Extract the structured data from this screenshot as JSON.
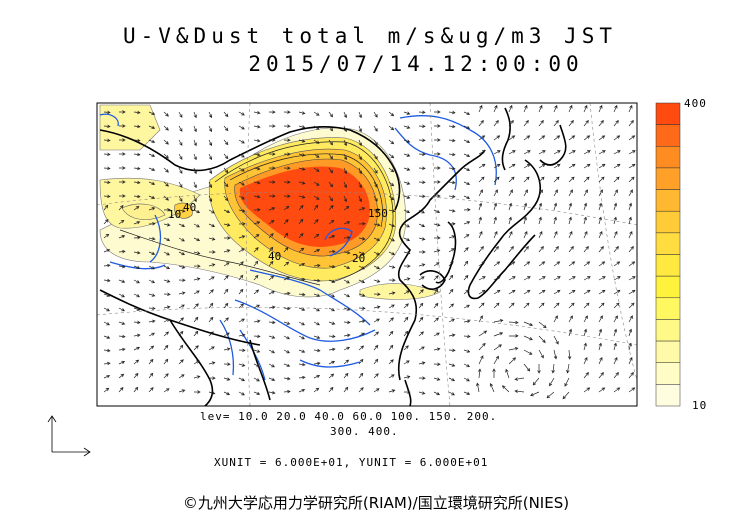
{
  "title_line1": "U-V&Dust total m/s&ug/m3 JST",
  "title_line2": "2015/07/14.12:00:00",
  "levels_line1": "lev= 10.0 20.0 40.0 60.0 100. 150. 200.",
  "levels_line2": "300. 400.",
  "unit_text": "XUNIT = 6.000E+01, YUNIT = 6.000E+01",
  "colorbar": {
    "max_label": "400",
    "min_label": "10",
    "colors": [
      "#ff4a10",
      "#ff6a18",
      "#ff8c20",
      "#ffa028",
      "#ffb830",
      "#ffcc38",
      "#ffdc40",
      "#ffe840",
      "#fff23c",
      "#fff860",
      "#fffa88",
      "#fffaa8",
      "#fffcc6",
      "#fffde0"
    ]
  },
  "contour_labels": [
    "40",
    "150",
    "20",
    "10",
    "40"
  ],
  "copyright": "©九州大学応用力学研究所(RIAM)/国立環境研究所(NIES)"
}
